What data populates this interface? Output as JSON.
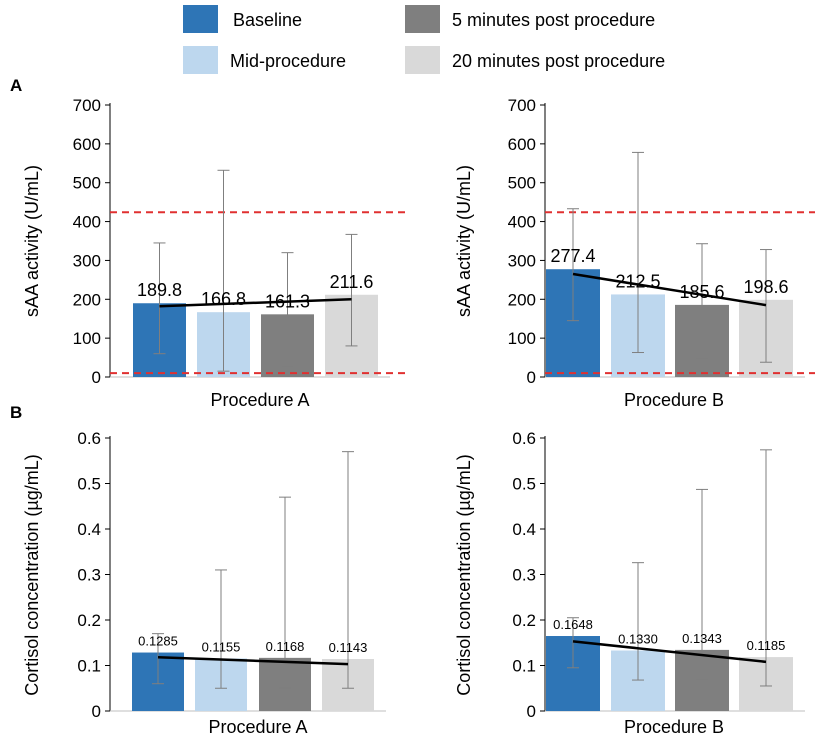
{
  "legend": [
    {
      "label": "Baseline",
      "color": "#2e75b6"
    },
    {
      "label": "5 minutes post procedure",
      "color": "#7f7f7f"
    },
    {
      "label": "Mid-procedure",
      "color": "#bdd7ee"
    },
    {
      "label": "20 minutes post procedure",
      "color": "#d9d9d9"
    }
  ],
  "panel_labels": {
    "a": "A",
    "b": "B"
  },
  "chart_data": [
    {
      "type": "bar",
      "panel": "A",
      "xlabel": "Procedure A",
      "ylabel": "sAA activity (U/mL)",
      "ylim": [
        0,
        700
      ],
      "yticks": [
        0,
        100,
        200,
        300,
        400,
        500,
        600,
        700
      ],
      "ytick_labels": [
        "0",
        "100",
        "200",
        "300",
        "400",
        "500",
        "600",
        "700"
      ],
      "series": [
        {
          "name": "Baseline",
          "value": 189.8,
          "label": "189.8",
          "err": [
            60,
            345
          ]
        },
        {
          "name": "Mid-procedure",
          "value": 166.8,
          "label": "166.8",
          "err": [
            15,
            532
          ]
        },
        {
          "name": "5 minutes post procedure",
          "value": 161.3,
          "label": "161.3",
          "err": [
            25,
            320
          ]
        },
        {
          "name": "20 minutes post procedure",
          "value": 211.6,
          "label": "211.6",
          "err": [
            80,
            367
          ]
        }
      ],
      "trendline": [
        182,
        200
      ],
      "reference_lines": [
        424,
        10
      ],
      "grid": false
    },
    {
      "type": "bar",
      "panel": "A",
      "xlabel": "Procedure B",
      "ylabel": "sAA activity (U/mL)",
      "ylim": [
        0,
        700
      ],
      "yticks": [
        0,
        100,
        200,
        300,
        400,
        500,
        600,
        700
      ],
      "ytick_labels": [
        "0",
        "100",
        "200",
        "300",
        "400",
        "500",
        "600",
        "700"
      ],
      "series": [
        {
          "name": "Baseline",
          "value": 277.4,
          "label": "277.4",
          "err": [
            145,
            433
          ]
        },
        {
          "name": "Mid-procedure",
          "value": 212.5,
          "label": "212.5",
          "err": [
            63,
            578
          ]
        },
        {
          "name": "5 minutes post procedure",
          "value": 185.6,
          "label": "185.6",
          "err": [
            47,
            343
          ]
        },
        {
          "name": "20 minutes post procedure",
          "value": 198.6,
          "label": "198.6",
          "err": [
            38,
            328
          ]
        }
      ],
      "trendline": [
        265,
        185
      ],
      "reference_lines": [
        424,
        10
      ],
      "grid": false
    },
    {
      "type": "bar",
      "panel": "B",
      "xlabel": "Procedure A",
      "ylabel": "Cortisol concentration (µg/mL)",
      "ylim": [
        0,
        0.6
      ],
      "yticks": [
        0,
        0.1,
        0.2,
        0.3,
        0.4,
        0.5,
        0.6
      ],
      "ytick_labels": [
        "0",
        "0.1",
        "0.2",
        "0.3",
        "0.4",
        "0.5",
        "0.6"
      ],
      "series": [
        {
          "name": "Baseline",
          "value": 0.1285,
          "label": "0.1285",
          "err": [
            0.06,
            0.17
          ]
        },
        {
          "name": "Mid-procedure",
          "value": 0.1155,
          "label": "0.1155",
          "err": [
            0.05,
            0.31
          ]
        },
        {
          "name": "5 minutes post procedure",
          "value": 0.1168,
          "label": "0.1168",
          "err": [
            0.05,
            0.47
          ]
        },
        {
          "name": "20 minutes post procedure",
          "value": 0.1143,
          "label": "0.1143",
          "err": [
            0.05,
            0.57
          ]
        }
      ],
      "trendline": [
        0.118,
        0.103
      ],
      "reference_lines": [],
      "grid": false
    },
    {
      "type": "bar",
      "panel": "B",
      "xlabel": "Procedure B",
      "ylabel": "Cortisol concentration (µg/mL)",
      "ylim": [
        0,
        0.6
      ],
      "yticks": [
        0,
        0.1,
        0.2,
        0.3,
        0.4,
        0.5,
        0.6
      ],
      "ytick_labels": [
        "0",
        "0.1",
        "0.2",
        "0.3",
        "0.4",
        "0.5",
        "0.6"
      ],
      "series": [
        {
          "name": "Baseline",
          "value": 0.1648,
          "label": "0.1648",
          "err": [
            0.095,
            0.205
          ]
        },
        {
          "name": "Mid-procedure",
          "value": 0.133,
          "label": "0.1330",
          "err": [
            0.068,
            0.326
          ]
        },
        {
          "name": "5 minutes post procedure",
          "value": 0.1343,
          "label": "0.1343",
          "err": [
            0.068,
            0.487
          ]
        },
        {
          "name": "20 minutes post procedure",
          "value": 0.1185,
          "label": "0.1185",
          "err": [
            0.055,
            0.574
          ]
        }
      ],
      "trendline": [
        0.153,
        0.108
      ],
      "reference_lines": [],
      "grid": false
    }
  ]
}
